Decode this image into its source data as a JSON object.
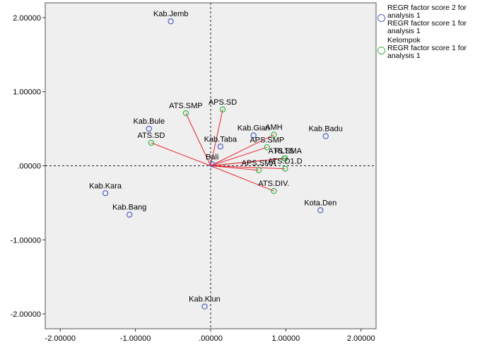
{
  "chart_data": {
    "type": "scatter",
    "grid": false,
    "reference_lines": {
      "x": 0,
      "y": 0
    },
    "xlim": [
      -2.2,
      2.2
    ],
    "ylim": [
      -2.2,
      2.2
    ],
    "x_ticks": [
      {
        "value": -2,
        "label": "-2.00000"
      },
      {
        "value": -1,
        "label": "-1.00000"
      },
      {
        "value": 0,
        "label": ".00000"
      },
      {
        "value": 1,
        "label": "1.00000"
      },
      {
        "value": 2,
        "label": "2.00000"
      }
    ],
    "y_ticks": [
      {
        "value": 2,
        "label": "2.00000"
      },
      {
        "value": 1,
        "label": "1.00000"
      },
      {
        "value": 0,
        "label": ".00000"
      },
      {
        "value": -1,
        "label": "-1.00000"
      },
      {
        "value": -2,
        "label": "-2.00000"
      }
    ],
    "legend": {
      "position": "right",
      "entries": [
        {
          "marker_color": "#4f5fc6",
          "text": "REGR factor score   2 for\nanalysis 1\n REGR factor score   1 for\nanalysis 1"
        },
        {
          "marker_color": "#39b54a",
          "text": "Kelompok\n REGR factor score   1 for\nanalysis 1"
        }
      ]
    },
    "series": [
      {
        "marker_color": "#4f5fc6",
        "points": [
          {
            "label": "Kab.Jemb",
            "x": -0.53,
            "y": 1.95
          },
          {
            "label": "Kab.Bule",
            "x": -0.82,
            "y": 0.5
          },
          {
            "label": "Kab.Taba",
            "x": 0.13,
            "y": 0.26
          },
          {
            "label": "Kab.Gian",
            "x": 0.57,
            "y": 0.41
          },
          {
            "label": "Kab.Badu",
            "x": 1.53,
            "y": 0.4
          },
          {
            "label": "Bali",
            "x": 0.02,
            "y": 0.02
          },
          {
            "label": "Kab.Kara",
            "x": -1.4,
            "y": -0.37
          },
          {
            "label": "Kab.Bang",
            "x": -1.08,
            "y": -0.66
          },
          {
            "label": "Kota.Den",
            "x": 1.46,
            "y": -0.6
          },
          {
            "label": "Kab.Klun",
            "x": -0.08,
            "y": -1.9
          }
        ]
      },
      {
        "marker_color": "#39b54a",
        "vector_color": "#e8262f",
        "origin": [
          0,
          0
        ],
        "points": [
          {
            "label": "ATS.SMP",
            "x": -0.33,
            "y": 0.71
          },
          {
            "label": "APS.SD",
            "x": 0.16,
            "y": 0.76
          },
          {
            "label": "ATS.SD",
            "x": -0.79,
            "y": 0.31
          },
          {
            "label": "AMH",
            "x": 0.84,
            "y": 0.42
          },
          {
            "label": "APS.SMP",
            "x": 0.75,
            "y": 0.25
          },
          {
            "label": "ATS.SMA",
            "x": 0.99,
            "y": 0.1
          },
          {
            "label": "RLTS",
            "x": 0.98,
            "y": 0.1
          },
          {
            "label": "APS.SMA",
            "x": 0.64,
            "y": -0.06
          },
          {
            "label": "ATS.D1.D",
            "x": 0.99,
            "y": -0.04
          },
          {
            "label": "ATS.DIV.",
            "x": 0.84,
            "y": -0.34
          }
        ]
      }
    ]
  }
}
